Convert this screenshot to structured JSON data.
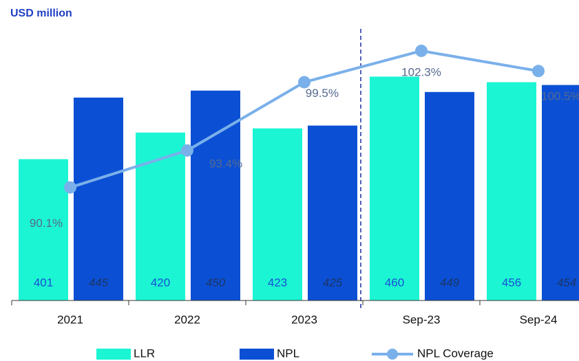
{
  "chart_data": {
    "type": "bar_line",
    "subtitle": "USD million",
    "categories": [
      "2021",
      "2022",
      "2023",
      "Sep-23",
      "Sep-24"
    ],
    "series": [
      {
        "name": "LLR",
        "color": "#1bf5d3",
        "values": [
          401,
          420,
          423,
          460,
          456
        ]
      },
      {
        "name": "NPL",
        "color": "#0b50d4",
        "values": [
          445,
          450,
          425,
          449,
          454
        ]
      },
      {
        "name": "NPL Coverage",
        "color": "#7ab0ea",
        "axis": "y2",
        "values": [
          90.1,
          93.4,
          99.5,
          102.3,
          100.5
        ],
        "value_labels": [
          "90.1%",
          "93.4%",
          "99.5%",
          "102.3%",
          "100.5%"
        ]
      }
    ],
    "ylim": [
      300,
      500
    ],
    "y2lim": [
      80,
      105
    ]
  }
}
